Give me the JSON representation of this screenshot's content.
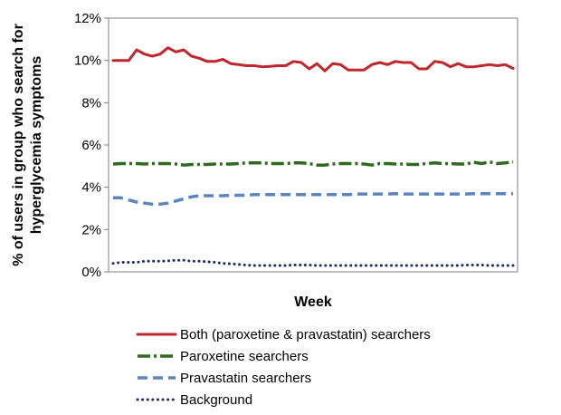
{
  "chart_data": {
    "type": "line",
    "title": "",
    "xlabel": "Week",
    "ylabel_lines": [
      "% of users in group who search for",
      "hyperglycemia symptoms"
    ],
    "ylim": [
      0,
      12
    ],
    "yticks": [
      0,
      2,
      4,
      6,
      8,
      10,
      12
    ],
    "ytick_labels": [
      "0%",
      "2%",
      "4%",
      "6%",
      "8%",
      "10%",
      "12%"
    ],
    "x": [
      1,
      2,
      3,
      4,
      5,
      6,
      7,
      8,
      9,
      10,
      11,
      12,
      13,
      14,
      15,
      16,
      17,
      18,
      19,
      20,
      21,
      22,
      23,
      24,
      25,
      26,
      27,
      28,
      29,
      30,
      31,
      32,
      33,
      34,
      35,
      36,
      37,
      38,
      39,
      40,
      41,
      42,
      43,
      44,
      45,
      46,
      47,
      48,
      49,
      50,
      51,
      52
    ],
    "grid": false,
    "legend_position": "bottom",
    "series": [
      {
        "name": "Both (paroxetine & pravastatin) searchers",
        "color": "#c0262b",
        "style": "solid",
        "values": [
          10.0,
          10.0,
          10.0,
          10.5,
          10.3,
          10.2,
          10.3,
          10.6,
          10.4,
          10.5,
          10.2,
          10.1,
          9.95,
          9.95,
          10.05,
          9.85,
          9.8,
          9.75,
          9.75,
          9.7,
          9.72,
          9.75,
          9.75,
          9.95,
          9.9,
          9.6,
          9.85,
          9.5,
          9.85,
          9.8,
          9.55,
          9.55,
          9.55,
          9.8,
          9.9,
          9.8,
          9.95,
          9.9,
          9.9,
          9.6,
          9.6,
          9.95,
          9.9,
          9.7,
          9.85,
          9.7,
          9.7,
          9.75,
          9.8,
          9.75,
          9.8,
          9.62
        ]
      },
      {
        "name": "Paroxetine searchers",
        "color": "#2e6b1f",
        "style": "dashdot",
        "values": [
          5.1,
          5.12,
          5.12,
          5.12,
          5.1,
          5.12,
          5.12,
          5.12,
          5.1,
          5.05,
          5.08,
          5.08,
          5.08,
          5.1,
          5.1,
          5.1,
          5.12,
          5.15,
          5.15,
          5.15,
          5.12,
          5.12,
          5.12,
          5.15,
          5.15,
          5.12,
          5.05,
          5.05,
          5.1,
          5.12,
          5.12,
          5.12,
          5.1,
          5.05,
          5.12,
          5.12,
          5.1,
          5.1,
          5.08,
          5.08,
          5.12,
          5.15,
          5.12,
          5.12,
          5.1,
          5.1,
          5.18,
          5.12,
          5.2,
          5.12,
          5.15,
          5.2
        ]
      },
      {
        "name": "Pravastatin searchers",
        "color": "#5b85c0",
        "style": "dashed",
        "values": [
          3.5,
          3.5,
          3.4,
          3.3,
          3.25,
          3.2,
          3.2,
          3.25,
          3.35,
          3.45,
          3.55,
          3.6,
          3.6,
          3.6,
          3.6,
          3.62,
          3.62,
          3.62,
          3.65,
          3.65,
          3.65,
          3.65,
          3.65,
          3.65,
          3.65,
          3.65,
          3.65,
          3.65,
          3.65,
          3.65,
          3.65,
          3.68,
          3.68,
          3.68,
          3.68,
          3.68,
          3.7,
          3.68,
          3.68,
          3.68,
          3.68,
          3.68,
          3.68,
          3.68,
          3.68,
          3.68,
          3.7,
          3.7,
          3.7,
          3.7,
          3.7,
          3.7
        ]
      },
      {
        "name": "Background",
        "color": "#1f2a6b",
        "style": "dotted",
        "values": [
          0.4,
          0.45,
          0.45,
          0.45,
          0.5,
          0.5,
          0.5,
          0.52,
          0.55,
          0.55,
          0.5,
          0.5,
          0.48,
          0.45,
          0.4,
          0.38,
          0.35,
          0.32,
          0.3,
          0.3,
          0.3,
          0.3,
          0.3,
          0.32,
          0.32,
          0.32,
          0.3,
          0.3,
          0.3,
          0.3,
          0.3,
          0.3,
          0.3,
          0.3,
          0.3,
          0.3,
          0.3,
          0.3,
          0.3,
          0.3,
          0.3,
          0.3,
          0.3,
          0.3,
          0.3,
          0.32,
          0.32,
          0.32,
          0.3,
          0.3,
          0.3,
          0.3
        ]
      }
    ]
  }
}
